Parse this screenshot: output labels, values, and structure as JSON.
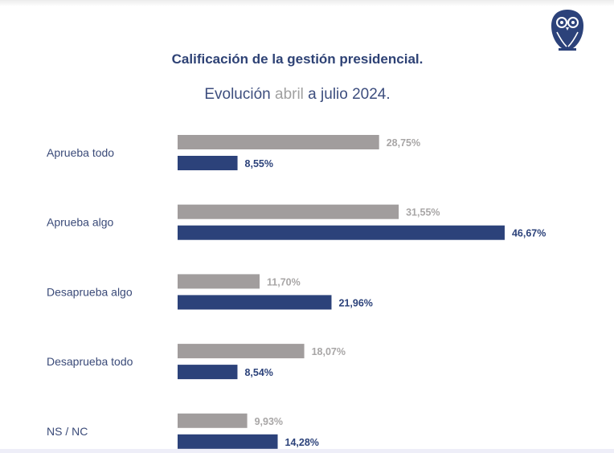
{
  "chart_data": {
    "type": "bar",
    "orientation": "horizontal",
    "title": "Calificación de la gestión presidencial.",
    "subtitle": {
      "prefix": "Evolución ",
      "highlight": "abril",
      "suffix": " a julio 2024."
    },
    "categories": [
      "Aprueba todo",
      "Aprueba algo",
      "Desaprueba algo",
      "Desaprueba todo",
      "NS / NC"
    ],
    "series": [
      {
        "name": "abril",
        "color": "#a19d9d",
        "label_color": "#a8a6a6",
        "values": [
          28.75,
          31.55,
          11.7,
          18.07,
          9.93
        ],
        "labels": [
          "28,75%",
          "31,55%",
          "11,70%",
          "18,07%",
          "9,93%"
        ]
      },
      {
        "name": "julio",
        "color": "#2c427a",
        "label_color": "#2c427a",
        "values": [
          8.55,
          46.67,
          21.96,
          8.54,
          14.28
        ],
        "labels": [
          "8,55%",
          "46,67%",
          "21,96%",
          "8,54%",
          "14,28%"
        ]
      }
    ],
    "xlim": [
      0,
      50
    ],
    "grid": false,
    "legend": "none"
  },
  "logo": {
    "icon": "owl-icon",
    "color": "#2c427a"
  }
}
